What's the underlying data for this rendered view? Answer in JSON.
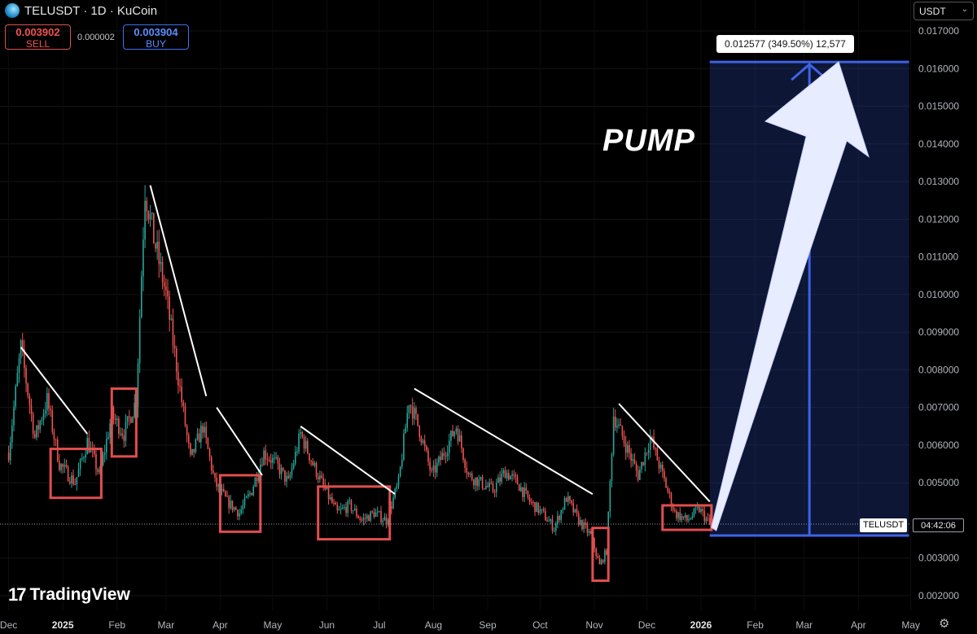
{
  "header": {
    "title": "TELUSDT · 1D · KuCoin",
    "sell_price": "0.003902",
    "sell_label": "SELL",
    "spread": "0.000002",
    "buy_price": "0.003904",
    "buy_label": "BUY",
    "currency": "USDT"
  },
  "measure_label": "0.012577 (349.50%) 12,577",
  "annotation_text": "PUMP",
  "brand": "TradingView",
  "price_tag": {
    "symbol": "TELUSDT",
    "countdown": "04:42:06"
  },
  "colors": {
    "up": "#26a69a",
    "down": "#ef5350",
    "box": "#e14e4e",
    "measure": "#3d63e6",
    "background": "#000000"
  },
  "chart_data": {
    "type": "candlestick",
    "x_ticks": [
      "Dec",
      "2025",
      "Feb",
      "Mar",
      "Apr",
      "May",
      "Jun",
      "Jul",
      "Aug",
      "Sep",
      "Oct",
      "Nov",
      "Dec",
      "2026",
      "Feb",
      "Mar",
      "Apr",
      "May"
    ],
    "y_ticks": [
      "0.017000",
      "0.016000",
      "0.015000",
      "0.014000",
      "0.013000",
      "0.012000",
      "0.011000",
      "0.010000",
      "0.009000",
      "0.008000",
      "0.007000",
      "0.006000",
      "0.005000",
      "0.003000",
      "0.002000"
    ],
    "ylim": [
      0.0018,
      0.0173
    ],
    "current_price": 0.003903,
    "price_waypoints": [
      [
        "2024-12-01",
        0.0058
      ],
      [
        "2024-12-08",
        0.0086
      ],
      [
        "2024-12-16",
        0.0062
      ],
      [
        "2024-12-23",
        0.0072
      ],
      [
        "2024-12-30",
        0.0055
      ],
      [
        "2025-01-08",
        0.005
      ],
      [
        "2025-01-15",
        0.0061
      ],
      [
        "2025-01-22",
        0.0052
      ],
      [
        "2025-01-29",
        0.0068
      ],
      [
        "2025-02-05",
        0.0063
      ],
      [
        "2025-02-12",
        0.0072
      ],
      [
        "2025-02-17",
        0.0128
      ],
      [
        "2025-02-22",
        0.0115
      ],
      [
        "2025-03-01",
        0.01
      ],
      [
        "2025-03-08",
        0.0078
      ],
      [
        "2025-03-15",
        0.0056
      ],
      [
        "2025-03-22",
        0.0065
      ],
      [
        "2025-03-29",
        0.005
      ],
      [
        "2025-04-05",
        0.0045
      ],
      [
        "2025-04-12",
        0.0042
      ],
      [
        "2025-04-19",
        0.0048
      ],
      [
        "2025-04-26",
        0.0058
      ],
      [
        "2025-05-03",
        0.0055
      ],
      [
        "2025-05-10",
        0.005
      ],
      [
        "2025-05-17",
        0.0063
      ],
      [
        "2025-05-24",
        0.0055
      ],
      [
        "2025-05-31",
        0.0048
      ],
      [
        "2025-06-07",
        0.0042
      ],
      [
        "2025-06-14",
        0.0044
      ],
      [
        "2025-06-21",
        0.004
      ],
      [
        "2025-06-28",
        0.0042
      ],
      [
        "2025-07-05",
        0.004
      ],
      [
        "2025-07-12",
        0.005
      ],
      [
        "2025-07-18",
        0.0072
      ],
      [
        "2025-07-24",
        0.0064
      ],
      [
        "2025-07-31",
        0.0052
      ],
      [
        "2025-08-07",
        0.0058
      ],
      [
        "2025-08-14",
        0.0065
      ],
      [
        "2025-08-21",
        0.0052
      ],
      [
        "2025-08-28",
        0.005
      ],
      [
        "2025-09-04",
        0.0048
      ],
      [
        "2025-09-11",
        0.0053
      ],
      [
        "2025-09-18",
        0.005
      ],
      [
        "2025-09-25",
        0.0045
      ],
      [
        "2025-10-02",
        0.0042
      ],
      [
        "2025-10-09",
        0.0038
      ],
      [
        "2025-10-16",
        0.0046
      ],
      [
        "2025-10-23",
        0.004
      ],
      [
        "2025-10-30",
        0.0036
      ],
      [
        "2025-11-04",
        0.0028
      ],
      [
        "2025-11-08",
        0.0032
      ],
      [
        "2025-11-12",
        0.0068
      ],
      [
        "2025-11-19",
        0.006
      ],
      [
        "2025-11-26",
        0.0052
      ],
      [
        "2025-12-03",
        0.0062
      ],
      [
        "2025-12-10",
        0.0052
      ],
      [
        "2025-12-17",
        0.0042
      ],
      [
        "2025-12-24",
        0.004
      ],
      [
        "2025-12-31",
        0.0043
      ],
      [
        "2026-01-06",
        0.0039
      ]
    ],
    "trendlines": [
      {
        "from": [
          "2024-12-08",
          0.0086
        ],
        "to": [
          "2025-01-15",
          0.0063
        ]
      },
      {
        "from": [
          "2025-02-20",
          0.0129
        ],
        "to": [
          "2025-03-24",
          0.0073
        ]
      },
      {
        "from": [
          "2025-03-30",
          0.007
        ],
        "to": [
          "2025-04-25",
          0.0052
        ]
      },
      {
        "from": [
          "2025-05-17",
          0.0065
        ],
        "to": [
          "2025-07-10",
          0.0047
        ]
      },
      {
        "from": [
          "2025-07-21",
          0.0075
        ],
        "to": [
          "2025-10-31",
          0.0047
        ]
      },
      {
        "from": [
          "2025-11-15",
          0.0071
        ],
        "to": [
          "2026-01-06",
          0.0045
        ]
      }
    ],
    "consolidation_boxes": [
      {
        "from": "2024-12-25",
        "to": "2025-01-23",
        "low": 0.0046,
        "high": 0.0059
      },
      {
        "from": "2025-01-29",
        "to": "2025-02-12",
        "low": 0.0057,
        "high": 0.0075
      },
      {
        "from": "2025-04-01",
        "to": "2025-04-24",
        "low": 0.0037,
        "high": 0.0052
      },
      {
        "from": "2025-05-27",
        "to": "2025-07-07",
        "low": 0.0035,
        "high": 0.0049
      },
      {
        "from": "2025-10-31",
        "to": "2025-11-09",
        "low": 0.0024,
        "high": 0.0038
      },
      {
        "from": "2025-12-10",
        "to": "2026-01-07",
        "low": 0.00375,
        "high": 0.0044
      }
    ],
    "projection": {
      "from_date": "2026-01-06",
      "to_date": "2026-04-30",
      "from_price": 0.0036,
      "to_price": 0.016177,
      "change": 0.012577,
      "change_pct": 349.5
    }
  }
}
